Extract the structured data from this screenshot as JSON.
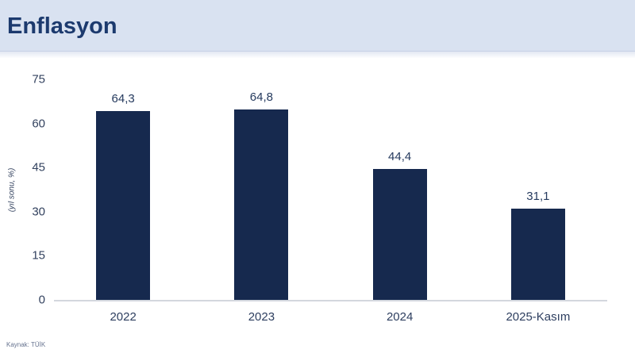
{
  "header": {
    "title": "Enflasyon"
  },
  "footer": {
    "source": "Kaynak: TÜİK"
  },
  "colors": {
    "header_bg": "#d9e2f1",
    "title_text": "#1c3a6e",
    "bar": "#16294e",
    "axis_line": "#d3d7de",
    "tick_text": "#33425f",
    "source_text": "#66738f"
  },
  "chart_data": {
    "type": "bar",
    "title": "Enflasyon",
    "categories": [
      "2022",
      "2023",
      "2024",
      "2025-Kasım"
    ],
    "values": [
      64.3,
      64.8,
      44.4,
      31.1
    ],
    "value_labels": [
      "64,3",
      "64,8",
      "44,4",
      "31,1"
    ],
    "xlabel": "",
    "ylabel": "(yıl sonu, %)",
    "ylim": [
      0,
      75
    ],
    "yticks": [
      0,
      15,
      30,
      45,
      60,
      75
    ],
    "grid": false,
    "legend": "none",
    "source": "Kaynak: TÜİK"
  }
}
